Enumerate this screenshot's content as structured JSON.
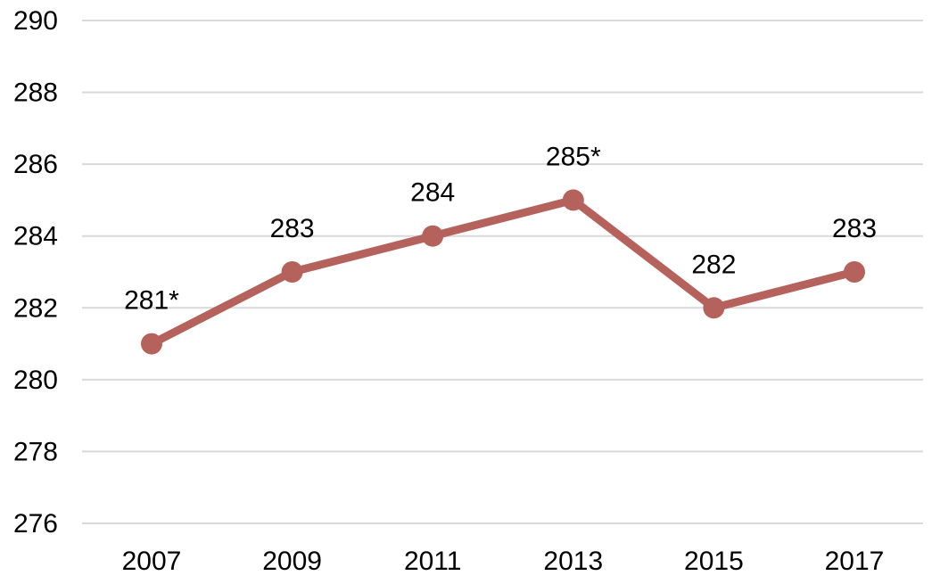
{
  "chart_data": {
    "type": "line",
    "categories": [
      "2007",
      "2009",
      "2011",
      "2013",
      "2015",
      "2017"
    ],
    "series": [
      {
        "values": [
          281,
          283,
          284,
          285,
          282,
          283
        ],
        "labels": [
          "281*",
          "283",
          "284",
          "285*",
          "282",
          "283"
        ],
        "color": "#b5615c"
      }
    ],
    "ylim": [
      276,
      290
    ],
    "yticks": [
      276,
      278,
      280,
      282,
      284,
      286,
      288,
      290
    ],
    "grid": true,
    "gridColor": "#d9d9d9",
    "legend": "none"
  }
}
